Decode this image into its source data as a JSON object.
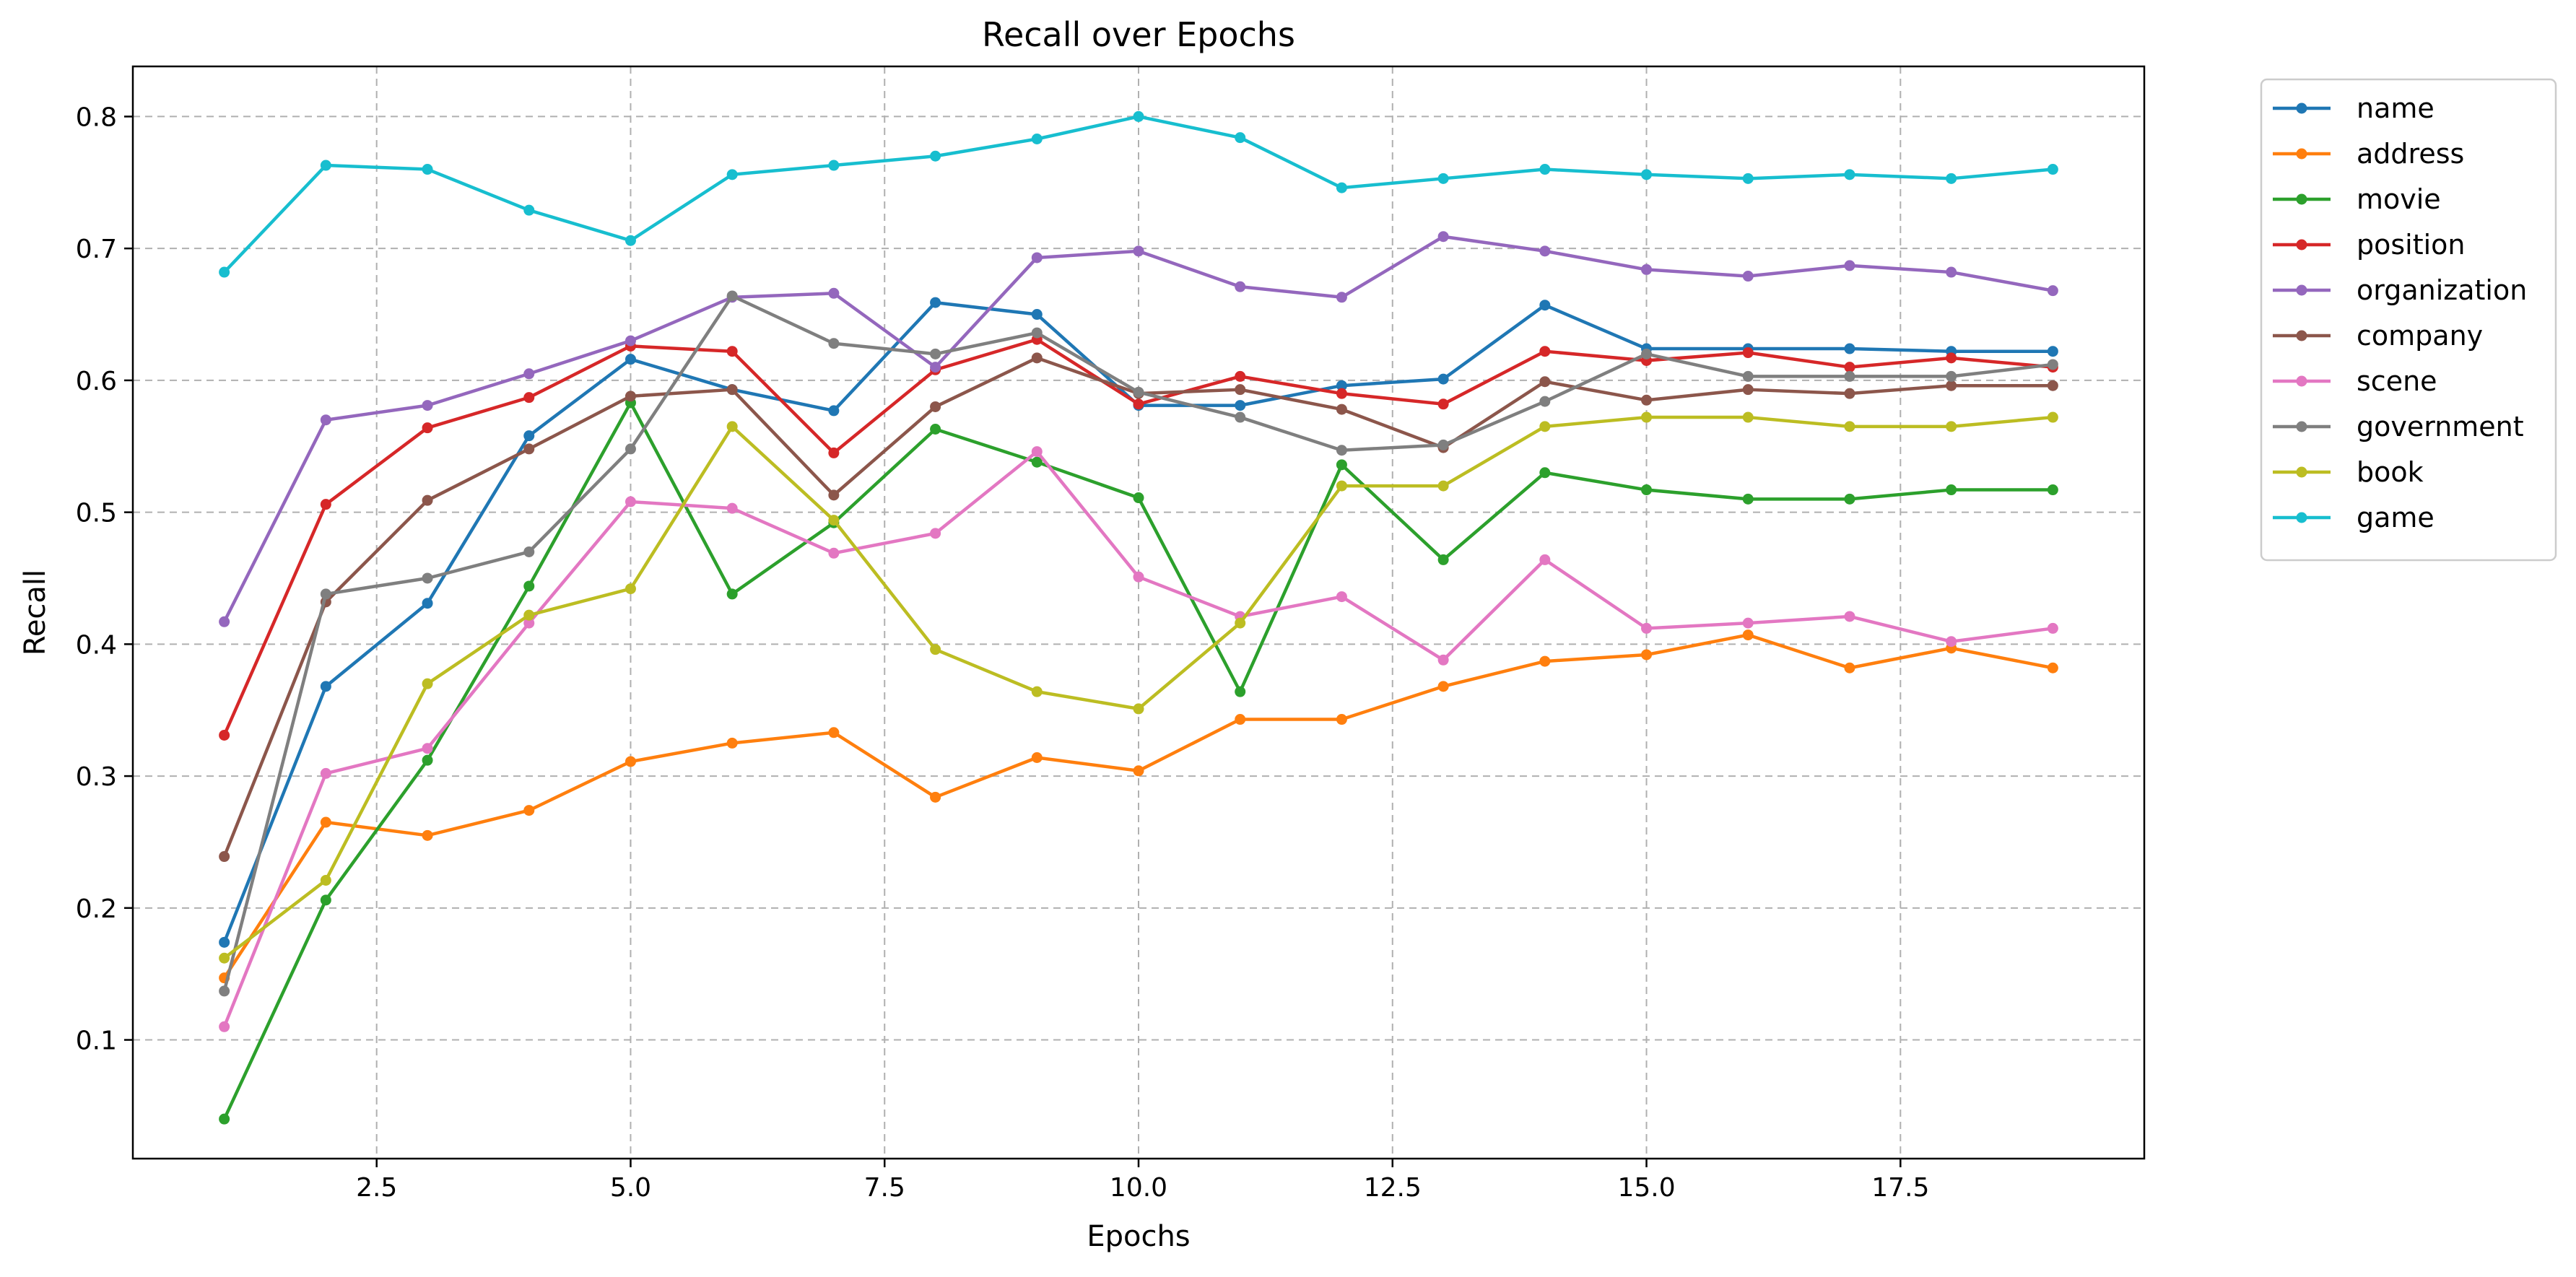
{
  "chart_data": {
    "type": "line",
    "title": "Recall over Epochs",
    "xlabel": "Epochs",
    "ylabel": "Recall",
    "xlim": [
      0.1,
      19.9
    ],
    "ylim": [
      0.01,
      0.838
    ],
    "xticks": [
      2.5,
      5.0,
      7.5,
      10.0,
      12.5,
      15.0,
      17.5
    ],
    "xtick_labels": [
      "2.5",
      "5.0",
      "7.5",
      "10.0",
      "12.5",
      "15.0",
      "17.5"
    ],
    "yticks": [
      0.1,
      0.2,
      0.3,
      0.4,
      0.5,
      0.6,
      0.7,
      0.8
    ],
    "ytick_labels": [
      "0.1",
      "0.2",
      "0.3",
      "0.4",
      "0.5",
      "0.6",
      "0.7",
      "0.8"
    ],
    "grid": true,
    "grid_style": "dashed",
    "legend_position": "outside-top-right",
    "x": [
      1,
      2,
      3,
      4,
      5,
      6,
      7,
      8,
      9,
      10,
      11,
      12,
      13,
      14,
      15,
      16,
      17,
      18,
      19
    ],
    "series": [
      {
        "name": "name",
        "color": "#1f77b4",
        "values": [
          0.174,
          0.368,
          0.431,
          0.558,
          0.616,
          0.593,
          0.577,
          0.659,
          0.65,
          0.581,
          0.581,
          0.596,
          0.601,
          0.657,
          0.624,
          0.624,
          0.624,
          0.622,
          0.622
        ]
      },
      {
        "name": "address",
        "color": "#ff7f0e",
        "values": [
          0.147,
          0.265,
          0.255,
          0.274,
          0.311,
          0.325,
          0.333,
          0.284,
          0.314,
          0.304,
          0.343,
          0.343,
          0.368,
          0.387,
          0.392,
          0.407,
          0.382,
          0.397,
          0.382
        ]
      },
      {
        "name": "movie",
        "color": "#2ca02c",
        "values": [
          0.04,
          0.206,
          0.312,
          0.444,
          0.583,
          0.438,
          0.492,
          0.563,
          0.538,
          0.511,
          0.364,
          0.536,
          0.464,
          0.53,
          0.517,
          0.51,
          0.51,
          0.517,
          0.517
        ]
      },
      {
        "name": "position",
        "color": "#d62728",
        "values": [
          0.331,
          0.506,
          0.564,
          0.587,
          0.626,
          0.622,
          0.545,
          0.608,
          0.631,
          0.582,
          0.603,
          0.59,
          0.582,
          0.622,
          0.615,
          0.621,
          0.61,
          0.617,
          0.61
        ]
      },
      {
        "name": "organization",
        "color": "#9467bd",
        "values": [
          0.417,
          0.57,
          0.581,
          0.605,
          0.63,
          0.663,
          0.666,
          0.61,
          0.693,
          0.698,
          0.671,
          0.663,
          0.709,
          0.698,
          0.684,
          0.679,
          0.687,
          0.682,
          0.668
        ]
      },
      {
        "name": "company",
        "color": "#8c564b",
        "values": [
          0.239,
          0.432,
          0.509,
          0.548,
          0.588,
          0.593,
          0.513,
          0.58,
          0.617,
          0.59,
          0.593,
          0.578,
          0.549,
          0.599,
          0.585,
          0.593,
          0.59,
          0.596,
          0.596
        ]
      },
      {
        "name": "scene",
        "color": "#e377c2",
        "values": [
          0.11,
          0.302,
          0.321,
          0.416,
          0.508,
          0.503,
          0.469,
          0.484,
          0.546,
          0.451,
          0.421,
          0.436,
          0.388,
          0.464,
          0.412,
          0.416,
          0.421,
          0.402,
          0.412
        ]
      },
      {
        "name": "government",
        "color": "#7f7f7f",
        "values": [
          0.137,
          0.438,
          0.45,
          0.47,
          0.548,
          0.664,
          0.628,
          0.62,
          0.636,
          0.591,
          0.572,
          0.547,
          0.551,
          0.584,
          0.62,
          0.603,
          0.603,
          0.603,
          0.612
        ]
      },
      {
        "name": "book",
        "color": "#bcbd22",
        "values": [
          0.162,
          0.221,
          0.37,
          0.422,
          0.442,
          0.565,
          0.494,
          0.396,
          0.364,
          0.351,
          0.416,
          0.52,
          0.52,
          0.565,
          0.572,
          0.572,
          0.565,
          0.565,
          0.572
        ]
      },
      {
        "name": "game",
        "color": "#17becf",
        "values": [
          0.682,
          0.763,
          0.76,
          0.729,
          0.706,
          0.756,
          0.763,
          0.77,
          0.783,
          0.8,
          0.784,
          0.746,
          0.753,
          0.76,
          0.756,
          0.753,
          0.756,
          0.753,
          0.76
        ]
      }
    ]
  }
}
